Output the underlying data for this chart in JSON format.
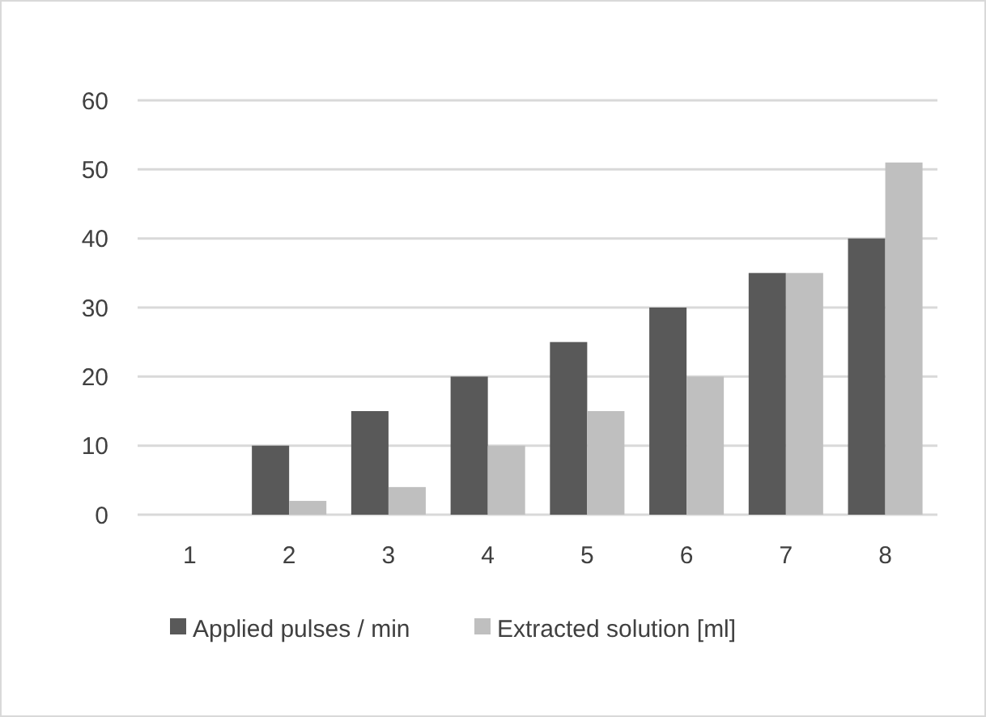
{
  "chart_data": {
    "type": "bar",
    "categories": [
      "1",
      "2",
      "3",
      "4",
      "5",
      "6",
      "7",
      "8"
    ],
    "series": [
      {
        "name": "Applied pulses / min",
        "color": "#595959",
        "values": [
          0,
          10,
          15,
          20,
          25,
          30,
          35,
          40
        ]
      },
      {
        "name": "Extracted solution [ml]",
        "color": "#bfbfbf",
        "values": [
          0,
          2,
          4,
          10,
          15,
          20,
          35,
          51
        ]
      }
    ],
    "ylim": [
      0,
      60
    ],
    "yticks": [
      0,
      10,
      20,
      30,
      40,
      50,
      60
    ],
    "grid": "y",
    "legend": "bottom"
  }
}
